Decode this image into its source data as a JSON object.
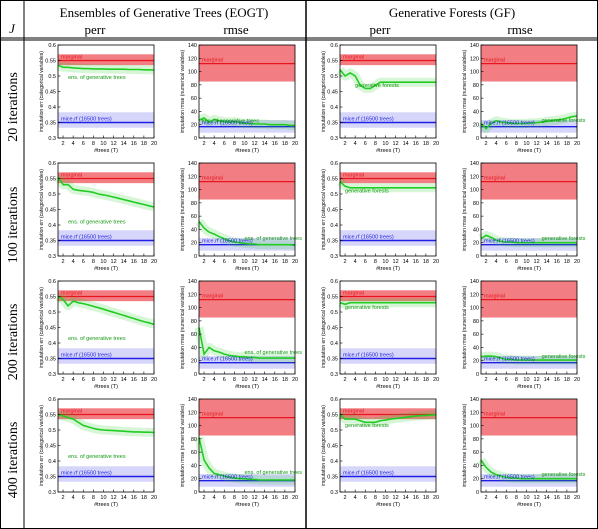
{
  "header": {
    "j_label": "J",
    "group_left": "Ensembles of Generative Trees (EOGT)",
    "group_right": "Generative Forests (GF)",
    "col_labels": [
      "perr",
      "rmse",
      "perr",
      "rmse"
    ]
  },
  "row_labels": [
    "20 iterations",
    "100 iterations",
    "200 iterations",
    "400 iterations"
  ],
  "labels": {
    "marginal": "marginal",
    "mice": "mice.rf (16500 trees)",
    "eogt": "ens. of generative trees",
    "gf": "generative forests",
    "xlabel": "#trees (T)",
    "ylabel_perr": "imputation err (categorical variables)",
    "ylabel_rmse": "imputation rmse (numerical variables)"
  },
  "colors": {
    "marginal": "#e8141e",
    "mice": "#1e1ee6",
    "method": "#22cc22"
  },
  "chart_data": {
    "type": "line",
    "x": [
      1,
      2,
      3,
      4,
      5,
      6,
      7,
      8,
      9,
      10,
      11,
      12,
      13,
      14,
      15,
      16,
      17,
      18,
      19,
      20
    ],
    "xlim": [
      1,
      20
    ],
    "xticks": [
      2,
      4,
      6,
      8,
      10,
      12,
      14,
      16,
      18,
      20
    ],
    "perr_ylim": [
      0.3,
      0.6
    ],
    "perr_yticks": [
      "0.3",
      "0.35",
      "0.4",
      "0.45",
      "0.5",
      "0.55",
      "0.6"
    ],
    "rmse_ylim": [
      0,
      140
    ],
    "rmse_yticks": [
      "0",
      "20",
      "40",
      "60",
      "80",
      "100",
      "120",
      "140"
    ],
    "panels": [
      {
        "row": 0,
        "col": 0,
        "metric": "perr",
        "method": "eogt",
        "marginal": 0.55,
        "marginal_band": [
          0.535,
          0.57
        ],
        "mice": 0.35,
        "mice_band": [
          0.333,
          0.383
        ],
        "values": [
          0.535,
          0.528,
          0.528,
          0.526,
          0.525,
          0.524,
          0.524,
          0.523,
          0.523,
          0.523,
          0.522,
          0.522,
          0.522,
          0.522,
          0.521,
          0.521,
          0.521,
          0.52,
          0.52,
          0.519
        ],
        "label_xy": [
          3,
          0.49
        ]
      },
      {
        "row": 0,
        "col": 1,
        "metric": "rmse",
        "method": "eogt",
        "marginal": 112,
        "marginal_band": [
          85,
          140
        ],
        "mice": 17,
        "mice_band": [
          8,
          27
        ],
        "values": [
          27,
          30,
          24,
          28,
          26,
          25,
          24,
          25,
          23,
          22,
          22,
          21,
          21,
          21,
          20,
          20,
          20,
          20,
          19,
          19
        ],
        "label_xy": [
          1.5,
          23
        ]
      },
      {
        "row": 0,
        "col": 2,
        "metric": "perr",
        "method": "gf",
        "marginal": 0.55,
        "marginal_band": [
          0.535,
          0.57
        ],
        "mice": 0.35,
        "mice_band": [
          0.333,
          0.383
        ],
        "values": [
          0.52,
          0.5,
          0.51,
          0.5,
          0.47,
          0.46,
          0.46,
          0.47,
          0.48,
          0.48,
          0.48,
          0.48,
          0.48,
          0.48,
          0.48,
          0.48,
          0.48,
          0.48,
          0.48,
          0.48
        ],
        "label_xy": [
          4,
          0.465
        ]
      },
      {
        "row": 0,
        "col": 3,
        "metric": "rmse",
        "method": "gf",
        "marginal": 112,
        "marginal_band": [
          85,
          140
        ],
        "mice": 17,
        "mice_band": [
          8,
          27
        ],
        "values": [
          22,
          14,
          22,
          26,
          24,
          23,
          22,
          22,
          22,
          22,
          23,
          23,
          24,
          25,
          26,
          27,
          28,
          30,
          32,
          33
        ],
        "label_xy": [
          13,
          24
        ]
      },
      {
        "row": 1,
        "col": 0,
        "metric": "perr",
        "method": "eogt",
        "marginal": 0.55,
        "marginal_band": [
          0.535,
          0.57
        ],
        "mice": 0.35,
        "mice_band": [
          0.333,
          0.383
        ],
        "values": [
          0.555,
          0.53,
          0.53,
          0.515,
          0.512,
          0.51,
          0.508,
          0.505,
          0.5,
          0.497,
          0.494,
          0.49,
          0.486,
          0.482,
          0.478,
          0.474,
          0.47,
          0.466,
          0.462,
          0.458
        ],
        "label_xy": [
          3,
          0.405
        ]
      },
      {
        "row": 1,
        "col": 1,
        "metric": "rmse",
        "method": "eogt",
        "marginal": 112,
        "marginal_band": [
          85,
          140
        ],
        "mice": 17,
        "mice_band": [
          8,
          27
        ],
        "values": [
          52,
          42,
          36,
          33,
          29,
          26,
          23,
          21,
          20,
          19,
          18,
          18,
          17,
          17,
          17,
          17,
          17,
          17,
          17,
          16
        ],
        "label_xy": [
          10,
          24
        ]
      },
      {
        "row": 1,
        "col": 2,
        "metric": "perr",
        "method": "gf",
        "marginal": 0.55,
        "marginal_band": [
          0.535,
          0.57
        ],
        "mice": 0.35,
        "mice_band": [
          0.333,
          0.383
        ],
        "values": [
          0.54,
          0.525,
          0.52,
          0.52,
          0.52,
          0.52,
          0.52,
          0.52,
          0.52,
          0.52,
          0.52,
          0.52,
          0.52,
          0.52,
          0.52,
          0.52,
          0.52,
          0.52,
          0.52,
          0.52
        ],
        "label_xy": [
          2,
          0.505
        ]
      },
      {
        "row": 1,
        "col": 3,
        "metric": "rmse",
        "method": "gf",
        "marginal": 112,
        "marginal_band": [
          85,
          140
        ],
        "mice": 17,
        "mice_band": [
          8,
          27
        ],
        "values": [
          26,
          31,
          28,
          24,
          22,
          21,
          21,
          20,
          20,
          20,
          20,
          20,
          20,
          20,
          20,
          20,
          20,
          20,
          20,
          20
        ],
        "label_xy": [
          13,
          24
        ]
      },
      {
        "row": 2,
        "col": 0,
        "metric": "perr",
        "method": "eogt",
        "marginal": 0.55,
        "marginal_band": [
          0.535,
          0.57
        ],
        "mice": 0.35,
        "mice_band": [
          0.333,
          0.383
        ],
        "values": [
          0.55,
          0.54,
          0.52,
          0.535,
          0.53,
          0.527,
          0.523,
          0.518,
          0.514,
          0.509,
          0.504,
          0.499,
          0.494,
          0.489,
          0.484,
          0.479,
          0.474,
          0.469,
          0.465,
          0.46
        ],
        "label_xy": [
          3,
          0.41
        ]
      },
      {
        "row": 2,
        "col": 1,
        "metric": "rmse",
        "method": "eogt",
        "marginal": 112,
        "marginal_band": [
          85,
          140
        ],
        "mice": 17,
        "mice_band": [
          8,
          27
        ],
        "values": [
          70,
          30,
          40,
          35,
          33,
          30,
          28,
          27,
          26,
          26,
          25,
          25,
          24,
          24,
          24,
          24,
          24,
          24,
          24,
          24
        ],
        "label_xy": [
          10,
          30
        ]
      },
      {
        "row": 2,
        "col": 2,
        "metric": "perr",
        "method": "gf",
        "marginal": 0.55,
        "marginal_band": [
          0.535,
          0.57
        ],
        "mice": 0.35,
        "mice_band": [
          0.333,
          0.383
        ],
        "values": [
          0.53,
          0.525,
          0.53,
          0.53,
          0.53,
          0.53,
          0.53,
          0.53,
          0.53,
          0.53,
          0.53,
          0.53,
          0.53,
          0.53,
          0.53,
          0.53,
          0.53,
          0.53,
          0.53,
          0.53
        ],
        "label_xy": [
          2,
          0.51
        ]
      },
      {
        "row": 2,
        "col": 3,
        "metric": "rmse",
        "method": "gf",
        "marginal": 112,
        "marginal_band": [
          85,
          140
        ],
        "mice": 17,
        "mice_band": [
          8,
          27
        ],
        "values": [
          26,
          27,
          27,
          26,
          24,
          22,
          22,
          21,
          21,
          21,
          21,
          21,
          21,
          21,
          21,
          21,
          21,
          21,
          21,
          21
        ],
        "label_xy": [
          13,
          24
        ]
      },
      {
        "row": 3,
        "col": 0,
        "metric": "perr",
        "method": "eogt",
        "marginal": 0.55,
        "marginal_band": [
          0.535,
          0.57
        ],
        "mice": 0.35,
        "mice_band": [
          0.333,
          0.383
        ],
        "values": [
          0.55,
          0.545,
          0.54,
          0.535,
          0.525,
          0.515,
          0.51,
          0.505,
          0.502,
          0.5,
          0.499,
          0.498,
          0.497,
          0.496,
          0.495,
          0.494,
          0.494,
          0.493,
          0.493,
          0.492
        ],
        "label_xy": [
          3,
          0.41
        ]
      },
      {
        "row": 3,
        "col": 1,
        "metric": "rmse",
        "method": "eogt",
        "marginal": 112,
        "marginal_band": [
          85,
          140
        ],
        "mice": 17,
        "mice_band": [
          8,
          27
        ],
        "values": [
          82,
          48,
          36,
          28,
          26,
          24,
          22,
          21,
          20,
          20,
          19,
          19,
          18,
          18,
          18,
          18,
          18,
          18,
          18,
          18
        ],
        "label_xy": [
          10,
          27
        ]
      },
      {
        "row": 3,
        "col": 2,
        "metric": "perr",
        "method": "gf",
        "marginal": 0.55,
        "marginal_band": [
          0.535,
          0.57
        ],
        "mice": 0.35,
        "mice_band": [
          0.333,
          0.383
        ],
        "values": [
          0.55,
          0.535,
          0.535,
          0.535,
          0.53,
          0.525,
          0.525,
          0.525,
          0.53,
          0.532,
          0.535,
          0.537,
          0.539,
          0.541,
          0.543,
          0.545,
          0.546,
          0.547,
          0.548,
          0.549
        ],
        "label_xy": [
          2,
          0.51
        ]
      },
      {
        "row": 3,
        "col": 3,
        "metric": "rmse",
        "method": "gf",
        "marginal": 112,
        "marginal_band": [
          85,
          140
        ],
        "mice": 17,
        "mice_band": [
          8,
          27
        ],
        "values": [
          48,
          37,
          30,
          26,
          24,
          22,
          21,
          21,
          20,
          20,
          20,
          20,
          20,
          20,
          20,
          20,
          20,
          20,
          20,
          20
        ],
        "label_xy": [
          13,
          24
        ]
      }
    ]
  }
}
